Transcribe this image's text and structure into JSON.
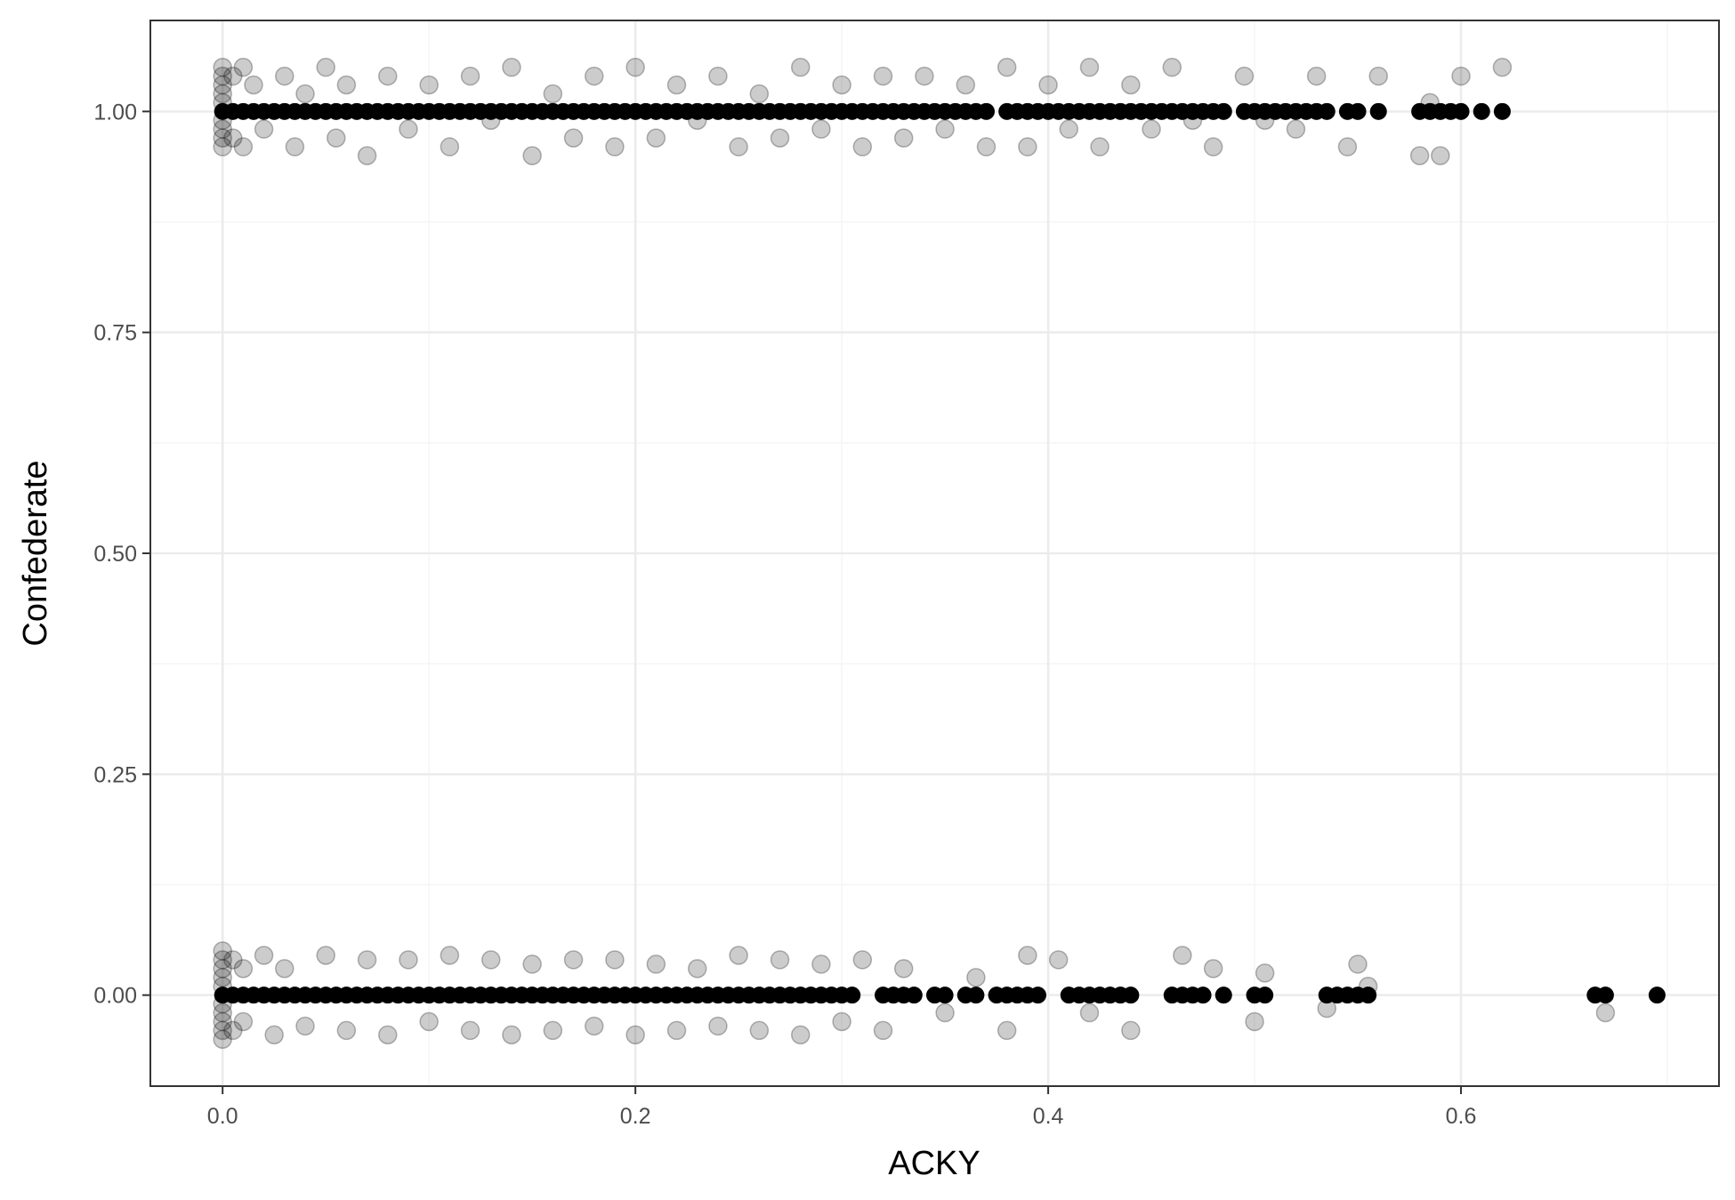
{
  "chart_data": {
    "type": "scatter",
    "title": "",
    "xlabel": "ACKY",
    "ylabel": "Confederate",
    "xlim": [
      -0.035,
      0.725
    ],
    "ylim": [
      -0.103,
      1.103
    ],
    "x_ticks": [
      {
        "value": 0.0,
        "label": "0.0"
      },
      {
        "value": 0.2,
        "label": "0.2"
      },
      {
        "value": 0.4,
        "label": "0.4"
      },
      {
        "value": 0.6,
        "label": "0.6"
      }
    ],
    "y_ticks": [
      {
        "value": 0.0,
        "label": "0.00"
      },
      {
        "value": 0.25,
        "label": "0.25"
      },
      {
        "value": 0.5,
        "label": "0.50"
      },
      {
        "value": 0.75,
        "label": "0.75"
      },
      {
        "value": 1.0,
        "label": "1.00"
      }
    ],
    "grid": true,
    "legend": "none",
    "colors": {
      "points_raw": "#000000",
      "points_jitter": "#000000",
      "panel_border": "#333333",
      "grid_major": "#ebebeb",
      "grid_minor": "#f5f5f5"
    },
    "series": [
      {
        "group": 1,
        "style": "solid",
        "x": [
          0.0,
          0.005,
          0.01,
          0.015,
          0.02,
          0.025,
          0.03,
          0.035,
          0.04,
          0.045,
          0.05,
          0.055,
          0.06,
          0.065,
          0.07,
          0.075,
          0.08,
          0.085,
          0.09,
          0.095,
          0.1,
          0.105,
          0.11,
          0.115,
          0.12,
          0.125,
          0.13,
          0.135,
          0.14,
          0.145,
          0.15,
          0.155,
          0.16,
          0.165,
          0.17,
          0.175,
          0.18,
          0.185,
          0.19,
          0.195,
          0.2,
          0.205,
          0.21,
          0.215,
          0.22,
          0.225,
          0.23,
          0.235,
          0.24,
          0.245,
          0.25,
          0.255,
          0.26,
          0.265,
          0.27,
          0.275,
          0.28,
          0.285,
          0.29,
          0.295,
          0.3,
          0.305,
          0.31,
          0.315,
          0.32,
          0.325,
          0.33,
          0.335,
          0.34,
          0.345,
          0.35,
          0.355,
          0.36,
          0.365,
          0.37,
          0.38,
          0.385,
          0.39,
          0.395,
          0.4,
          0.405,
          0.41,
          0.415,
          0.42,
          0.425,
          0.43,
          0.435,
          0.44,
          0.445,
          0.45,
          0.455,
          0.46,
          0.465,
          0.47,
          0.475,
          0.48,
          0.485,
          0.495,
          0.5,
          0.505,
          0.51,
          0.515,
          0.52,
          0.525,
          0.53,
          0.535,
          0.545,
          0.55,
          0.56,
          0.58,
          0.585,
          0.59,
          0.595,
          0.6,
          0.61,
          0.62
        ]
      },
      {
        "group": 0,
        "style": "solid",
        "x": [
          0.0,
          0.005,
          0.01,
          0.015,
          0.02,
          0.025,
          0.03,
          0.035,
          0.04,
          0.045,
          0.05,
          0.055,
          0.06,
          0.065,
          0.07,
          0.075,
          0.08,
          0.085,
          0.09,
          0.095,
          0.1,
          0.105,
          0.11,
          0.115,
          0.12,
          0.125,
          0.13,
          0.135,
          0.14,
          0.145,
          0.15,
          0.155,
          0.16,
          0.165,
          0.17,
          0.175,
          0.18,
          0.185,
          0.19,
          0.195,
          0.2,
          0.205,
          0.21,
          0.215,
          0.22,
          0.225,
          0.23,
          0.235,
          0.24,
          0.245,
          0.25,
          0.255,
          0.26,
          0.265,
          0.27,
          0.275,
          0.28,
          0.285,
          0.29,
          0.295,
          0.3,
          0.305,
          0.32,
          0.325,
          0.33,
          0.335,
          0.345,
          0.35,
          0.36,
          0.365,
          0.375,
          0.38,
          0.385,
          0.39,
          0.395,
          0.41,
          0.415,
          0.42,
          0.425,
          0.43,
          0.435,
          0.44,
          0.46,
          0.465,
          0.47,
          0.475,
          0.485,
          0.5,
          0.505,
          0.535,
          0.54,
          0.545,
          0.55,
          0.555,
          0.665,
          0.67,
          0.695
        ]
      },
      {
        "group": 1,
        "style": "jitter",
        "points": [
          [
            0.0,
            1.05
          ],
          [
            0.0,
            1.04
          ],
          [
            0.0,
            1.03
          ],
          [
            0.0,
            1.02
          ],
          [
            0.0,
            1.01
          ],
          [
            0.0,
            0.99
          ],
          [
            0.0,
            0.98
          ],
          [
            0.0,
            0.97
          ],
          [
            0.0,
            0.96
          ],
          [
            0.005,
            1.04
          ],
          [
            0.005,
            0.97
          ],
          [
            0.01,
            1.05
          ],
          [
            0.01,
            0.96
          ],
          [
            0.015,
            1.03
          ],
          [
            0.02,
            0.98
          ],
          [
            0.03,
            1.04
          ],
          [
            0.035,
            0.96
          ],
          [
            0.04,
            1.02
          ],
          [
            0.05,
            1.05
          ],
          [
            0.055,
            0.97
          ],
          [
            0.06,
            1.03
          ],
          [
            0.07,
            0.95
          ],
          [
            0.08,
            1.04
          ],
          [
            0.09,
            0.98
          ],
          [
            0.1,
            1.03
          ],
          [
            0.11,
            0.96
          ],
          [
            0.12,
            1.04
          ],
          [
            0.13,
            0.99
          ],
          [
            0.14,
            1.05
          ],
          [
            0.15,
            0.95
          ],
          [
            0.16,
            1.02
          ],
          [
            0.17,
            0.97
          ],
          [
            0.18,
            1.04
          ],
          [
            0.19,
            0.96
          ],
          [
            0.2,
            1.05
          ],
          [
            0.21,
            0.97
          ],
          [
            0.22,
            1.03
          ],
          [
            0.23,
            0.99
          ],
          [
            0.24,
            1.04
          ],
          [
            0.25,
            0.96
          ],
          [
            0.26,
            1.02
          ],
          [
            0.27,
            0.97
          ],
          [
            0.28,
            1.05
          ],
          [
            0.29,
            0.98
          ],
          [
            0.3,
            1.03
          ],
          [
            0.31,
            0.96
          ],
          [
            0.32,
            1.04
          ],
          [
            0.33,
            0.97
          ],
          [
            0.34,
            1.04
          ],
          [
            0.35,
            0.98
          ],
          [
            0.36,
            1.03
          ],
          [
            0.37,
            0.96
          ],
          [
            0.38,
            1.05
          ],
          [
            0.39,
            0.96
          ],
          [
            0.4,
            1.03
          ],
          [
            0.41,
            0.98
          ],
          [
            0.42,
            1.05
          ],
          [
            0.425,
            0.96
          ],
          [
            0.44,
            1.03
          ],
          [
            0.45,
            0.98
          ],
          [
            0.46,
            1.05
          ],
          [
            0.47,
            0.99
          ],
          [
            0.48,
            0.96
          ],
          [
            0.495,
            1.04
          ],
          [
            0.505,
            0.99
          ],
          [
            0.52,
            0.98
          ],
          [
            0.53,
            1.04
          ],
          [
            0.545,
            0.96
          ],
          [
            0.56,
            1.04
          ],
          [
            0.58,
            0.95
          ],
          [
            0.585,
            1.01
          ],
          [
            0.59,
            0.95
          ],
          [
            0.6,
            1.04
          ],
          [
            0.62,
            1.05
          ]
        ]
      },
      {
        "group": 0,
        "style": "jitter",
        "points": [
          [
            0.0,
            0.05
          ],
          [
            0.0,
            0.04
          ],
          [
            0.0,
            0.03
          ],
          [
            0.0,
            0.02
          ],
          [
            0.0,
            0.01
          ],
          [
            0.0,
            -0.01
          ],
          [
            0.0,
            -0.02
          ],
          [
            0.0,
            -0.03
          ],
          [
            0.0,
            -0.04
          ],
          [
            0.0,
            -0.05
          ],
          [
            0.005,
            0.04
          ],
          [
            0.005,
            -0.04
          ],
          [
            0.01,
            0.03
          ],
          [
            0.01,
            -0.03
          ],
          [
            0.02,
            0.045
          ],
          [
            0.025,
            -0.045
          ],
          [
            0.03,
            0.03
          ],
          [
            0.04,
            -0.035
          ],
          [
            0.05,
            0.045
          ],
          [
            0.06,
            -0.04
          ],
          [
            0.07,
            0.04
          ],
          [
            0.08,
            -0.045
          ],
          [
            0.09,
            0.04
          ],
          [
            0.1,
            -0.03
          ],
          [
            0.11,
            0.045
          ],
          [
            0.12,
            -0.04
          ],
          [
            0.13,
            0.04
          ],
          [
            0.14,
            -0.045
          ],
          [
            0.15,
            0.035
          ],
          [
            0.16,
            -0.04
          ],
          [
            0.17,
            0.04
          ],
          [
            0.18,
            -0.035
          ],
          [
            0.19,
            0.04
          ],
          [
            0.2,
            -0.045
          ],
          [
            0.21,
            0.035
          ],
          [
            0.22,
            -0.04
          ],
          [
            0.23,
            0.03
          ],
          [
            0.24,
            -0.035
          ],
          [
            0.25,
            0.045
          ],
          [
            0.26,
            -0.04
          ],
          [
            0.27,
            0.04
          ],
          [
            0.28,
            -0.045
          ],
          [
            0.29,
            0.035
          ],
          [
            0.3,
            -0.03
          ],
          [
            0.31,
            0.04
          ],
          [
            0.32,
            -0.04
          ],
          [
            0.33,
            0.03
          ],
          [
            0.35,
            -0.02
          ],
          [
            0.365,
            0.02
          ],
          [
            0.38,
            -0.04
          ],
          [
            0.39,
            0.045
          ],
          [
            0.405,
            0.04
          ],
          [
            0.42,
            -0.02
          ],
          [
            0.44,
            -0.04
          ],
          [
            0.465,
            0.045
          ],
          [
            0.48,
            0.03
          ],
          [
            0.5,
            -0.03
          ],
          [
            0.505,
            0.025
          ],
          [
            0.535,
            -0.015
          ],
          [
            0.55,
            0.035
          ],
          [
            0.555,
            0.01
          ],
          [
            0.67,
            -0.02
          ]
        ]
      }
    ]
  }
}
